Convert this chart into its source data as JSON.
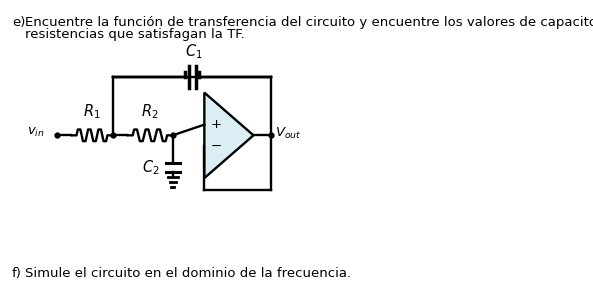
{
  "bg_color": "#ffffff",
  "text_e": "e)",
  "line1": "Encuentre la función de transferencia del circuito y encuentre los valores de capacitores y",
  "line2": "resistencias que satisfagan la TF.",
  "text_f": "f)",
  "line_f": "Simule el circuito en el dominio de la frecuencia.",
  "font_size": 9.5,
  "circuit_color": "#000000",
  "opamp_fill": "#daeef3"
}
